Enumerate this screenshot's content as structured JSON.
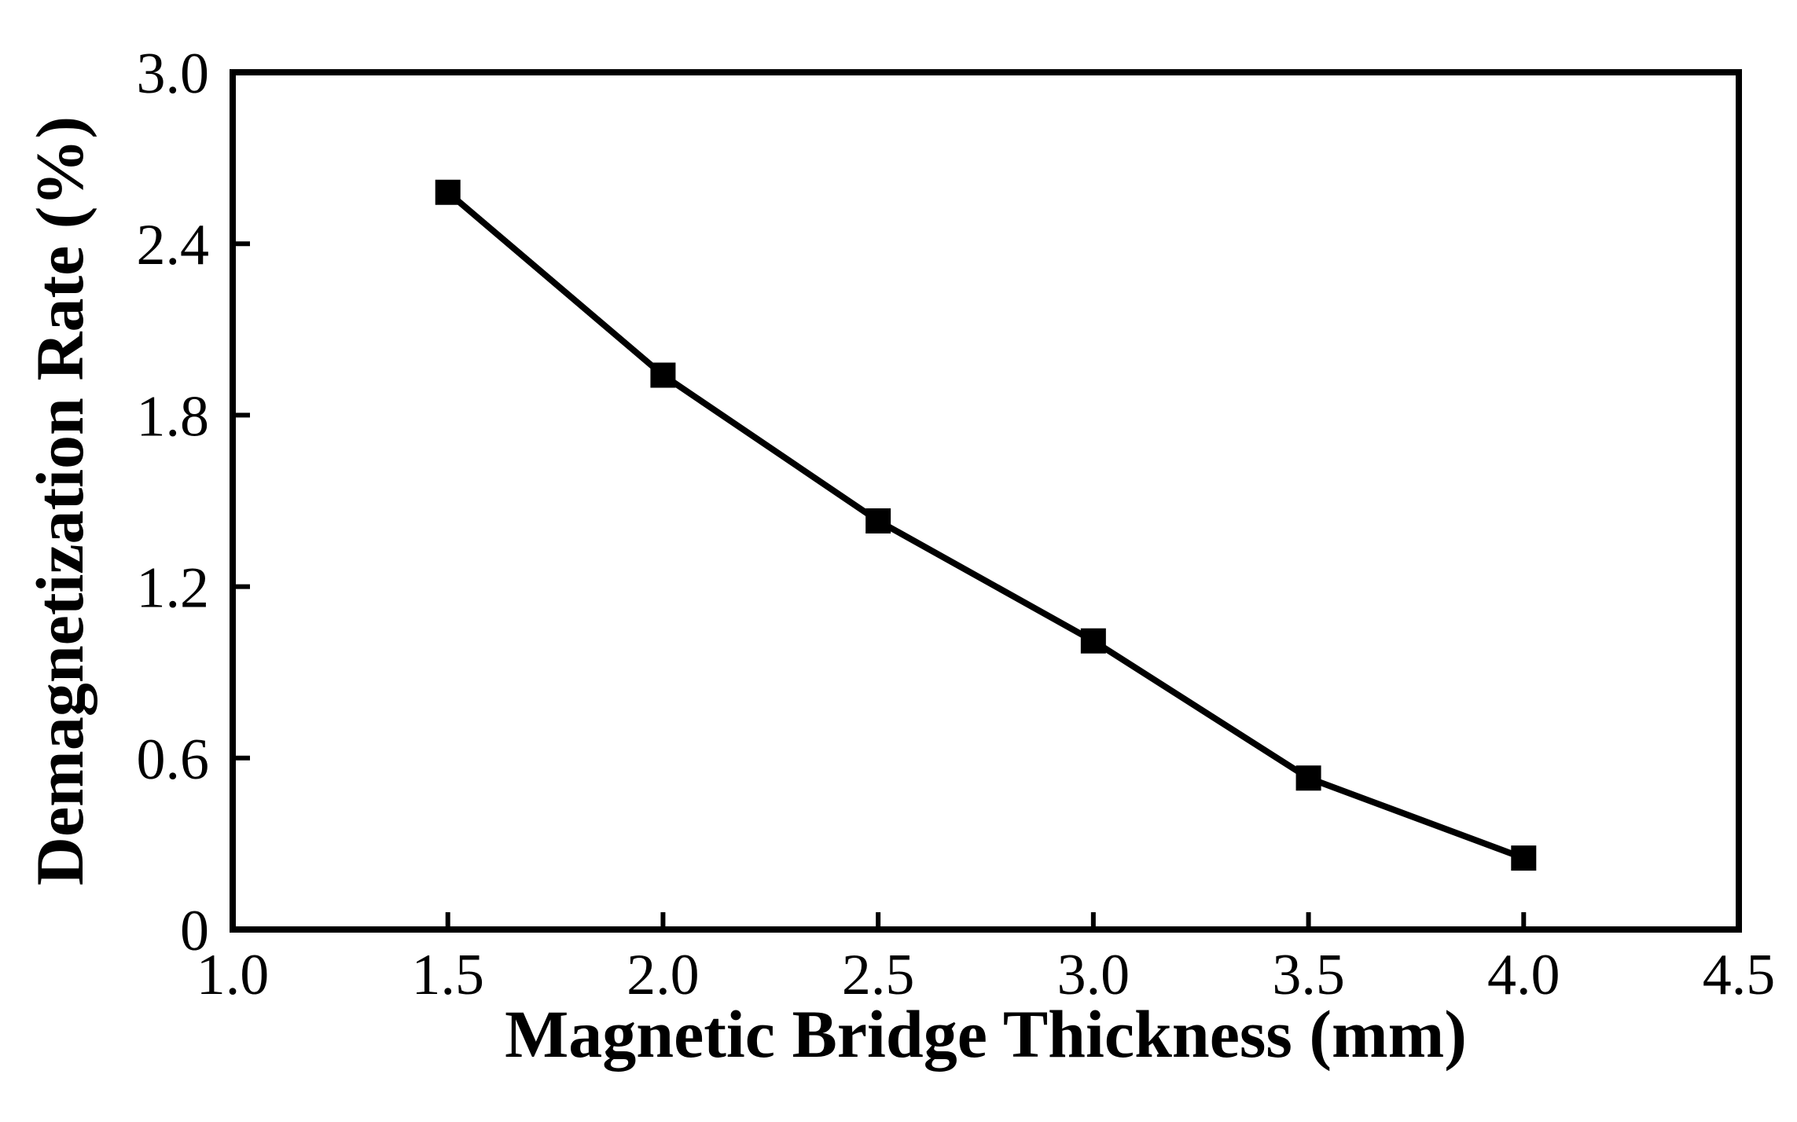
{
  "chart_data": {
    "type": "line",
    "title": "",
    "xlabel": "Magnetic Bridge Thickness (mm)",
    "ylabel": "Demagnetization Rate (%)",
    "xlim": [
      1.0,
      4.5
    ],
    "ylim": [
      0,
      3.0
    ],
    "x_ticks": [
      1.0,
      1.5,
      2.0,
      2.5,
      3.0,
      3.5,
      4.0,
      4.5
    ],
    "x_tick_labels": [
      "1.0",
      "1.5",
      "2.0",
      "2.5",
      "3.0",
      "3.5",
      "4.0",
      "4.5"
    ],
    "y_ticks": [
      0,
      0.6,
      1.2,
      1.8,
      2.4,
      3.0
    ],
    "y_tick_labels": [
      "0",
      "0.6",
      "1.2",
      "1.8",
      "2.4",
      "3.0"
    ],
    "grid": false,
    "legend": "none",
    "marker": "square",
    "line_color": "#000000",
    "series": [
      {
        "x": [
          1.5,
          2.0,
          2.5,
          3.0,
          3.5,
          4.0
        ],
        "values": [
          2.58,
          1.94,
          1.43,
          1.01,
          0.53,
          0.25
        ]
      }
    ]
  }
}
